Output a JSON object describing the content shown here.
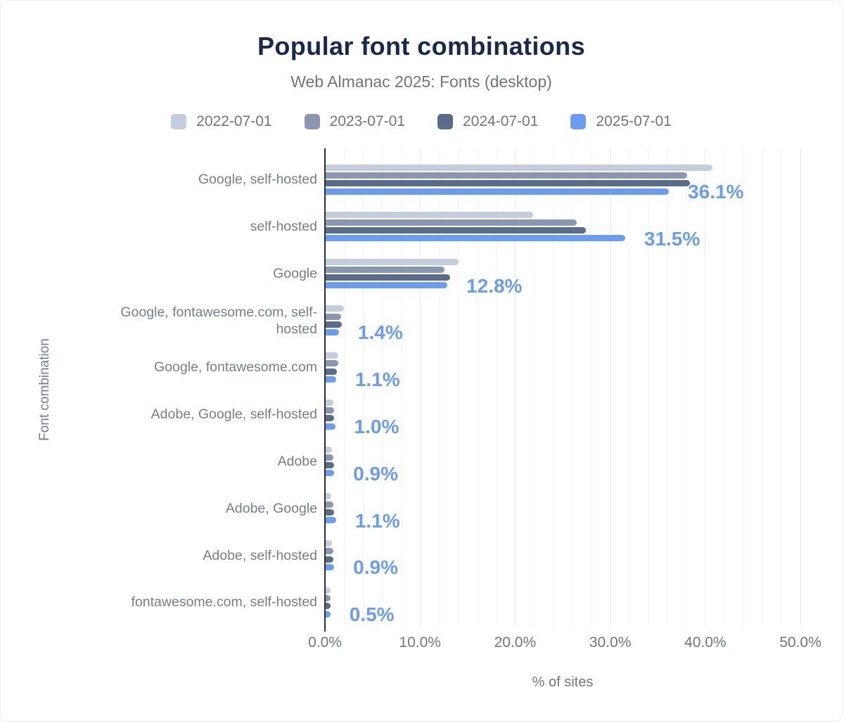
{
  "colors": {
    "title": "#17294d",
    "subtitle": "#6f7580",
    "axis": "#2e2e2e",
    "label": "#767d8b",
    "tick": "#6f7683",
    "value": "#699df3",
    "grid_minor": "#f3f4f6",
    "grid_major": "#e7e9ed"
  },
  "chart_data": {
    "type": "bar",
    "orientation": "horizontal",
    "title": "Popular font combinations",
    "subtitle": "Web Almanac 2025: Fonts (desktop)",
    "xlabel": "% of sites",
    "ylabel": "Font combination",
    "xlim": [
      0,
      50
    ],
    "grid": "vertical, minor every 2%, major every 10%",
    "legend_position": "top",
    "x_tick_values": [
      0,
      10,
      20,
      30,
      40,
      50
    ],
    "x_tick_labels": [
      "0.0%",
      "10.0%",
      "20.0%",
      "30.0%",
      "40.0%",
      "50.0%"
    ],
    "categories": [
      "Google, self-hosted",
      "self-hosted",
      "Google",
      "Google, fontawesome.com, self-hosted",
      "Google, fontawesome.com",
      "Adobe, Google, self-hosted",
      "Adobe",
      "Adobe, Google",
      "Adobe, self-hosted",
      "fontawesome.com, self-hosted"
    ],
    "series": [
      {
        "name": "2022-07-01",
        "color": "#c3cdde",
        "values": [
          40.7,
          21.8,
          14.0,
          1.9,
          1.3,
          0.8,
          0.7,
          0.6,
          0.7,
          0.5
        ]
      },
      {
        "name": "2023-07-01",
        "color": "#8997b3",
        "values": [
          38.0,
          26.4,
          12.5,
          1.6,
          1.3,
          0.9,
          0.8,
          0.8,
          0.8,
          0.5
        ]
      },
      {
        "name": "2024-07-01",
        "color": "#5a6b8b",
        "values": [
          38.3,
          27.4,
          13.1,
          1.7,
          1.2,
          0.9,
          0.9,
          0.9,
          0.8,
          0.5
        ]
      },
      {
        "name": "2025-07-01",
        "color": "#699df3",
        "values": [
          36.1,
          31.5,
          12.8,
          1.4,
          1.1,
          1.0,
          0.9,
          1.1,
          0.9,
          0.5
        ]
      }
    ],
    "value_labels": {
      "series": "2025-07-01",
      "texts": [
        "36.1%",
        "31.5%",
        "12.8%",
        "1.4%",
        "1.1%",
        "1.0%",
        "0.9%",
        "1.1%",
        "0.9%",
        "0.5%"
      ]
    }
  }
}
